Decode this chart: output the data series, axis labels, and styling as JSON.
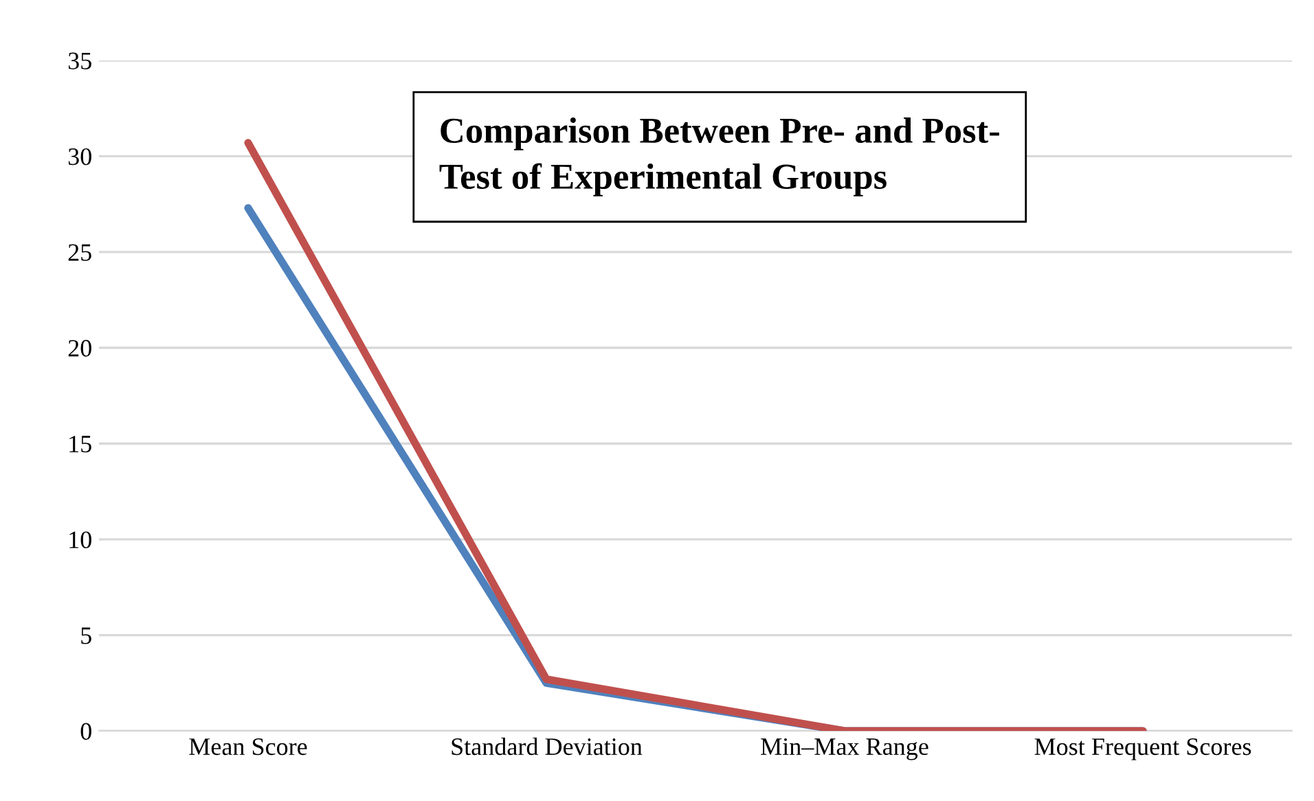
{
  "chart_data": {
    "type": "line",
    "title": "Comparison Between Pre- and Post-\nTest of Experimental Groups",
    "categories": [
      "Mean Score",
      "Standard Deviation",
      "Min–Max Range",
      "Most Frequent Scores"
    ],
    "series": [
      {
        "color": "#4f81bd",
        "values": [
          27.3,
          2.5,
          0,
          0
        ]
      },
      {
        "color": "#c0504d",
        "values": [
          30.7,
          2.7,
          0,
          0
        ]
      }
    ],
    "ylim": [
      0,
      35
    ],
    "yticks": [
      0,
      5,
      10,
      15,
      20,
      25,
      30,
      35
    ],
    "grid": "y",
    "marker": "none",
    "line_style": "solid"
  }
}
